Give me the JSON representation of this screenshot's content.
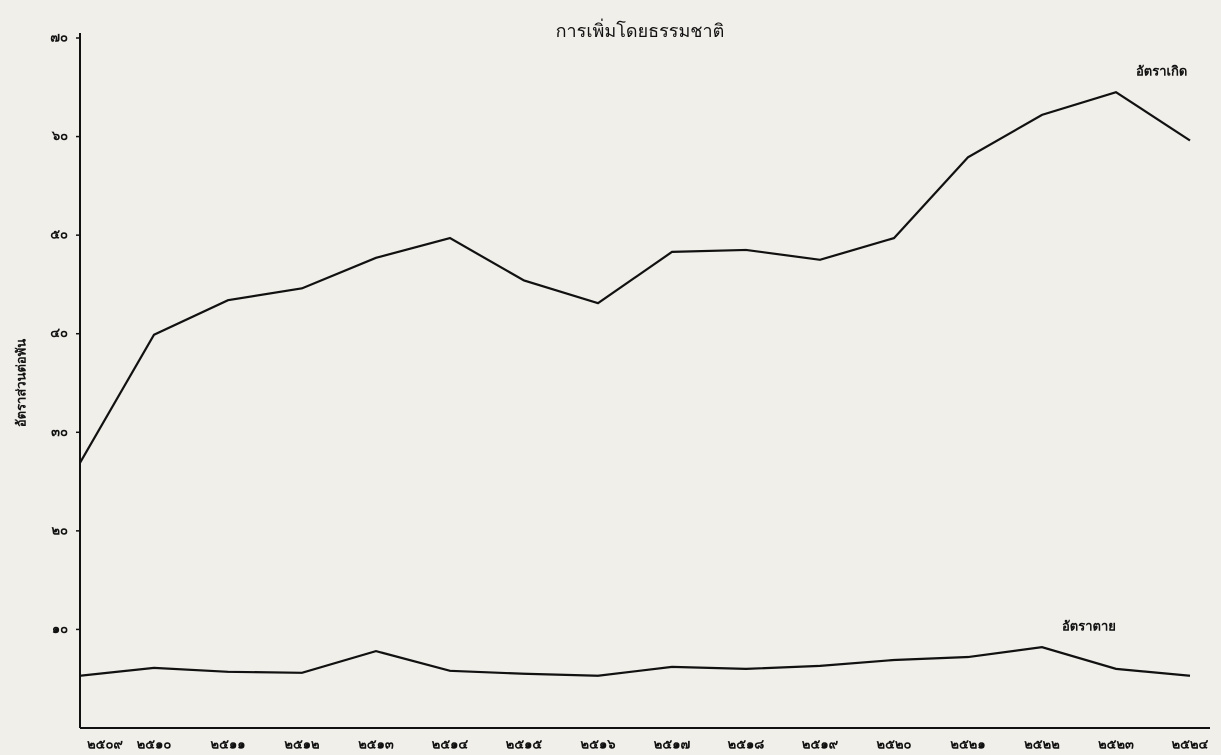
{
  "chart_data": {
    "type": "line",
    "title": "การเพิ่มโดยธรรมชาติ",
    "y_label": "อัตราส่วนต่อพัน",
    "categories": [
      "๒๕๐๙",
      "๒๕๑๐",
      "๒๕๑๑",
      "๒๕๑๒",
      "๒๕๑๓",
      "๒๕๑๔",
      "๒๕๑๕",
      "๒๕๑๖",
      "๒๕๑๗",
      "๒๕๑๘",
      "๒๕๑๙",
      "๒๕๒๐",
      "๒๕๒๑",
      "๒๕๒๒",
      "๒๕๒๓",
      "๒๕๒๔"
    ],
    "series": [
      {
        "name": "อัตราเกิด",
        "color": "#111111",
        "values": [
          26.9,
          39.9,
          43.4,
          44.6,
          47.7,
          49.7,
          45.4,
          43.1,
          48.3,
          48.5,
          47.5,
          49.7,
          57.9,
          62.2,
          64.5,
          59.6
        ]
      },
      {
        "name": "อัตราตาย",
        "color": "#111111",
        "values": [
          5.3,
          6.1,
          5.7,
          5.6,
          7.8,
          5.8,
          5.5,
          5.3,
          6.2,
          6.0,
          6.3,
          6.9,
          7.2,
          8.2,
          6.0,
          5.3
        ]
      }
    ],
    "ylim": [
      0,
      70
    ],
    "yticks": [
      {
        "value": 10,
        "label": "๑๐"
      },
      {
        "value": 20,
        "label": "๒๐"
      },
      {
        "value": 30,
        "label": "๓๐"
      },
      {
        "value": 40,
        "label": "๔๐"
      },
      {
        "value": 50,
        "label": "๕๐"
      },
      {
        "value": 60,
        "label": "๖๐"
      },
      {
        "value": 70,
        "label": "๗๐"
      }
    ],
    "grid": false
  }
}
